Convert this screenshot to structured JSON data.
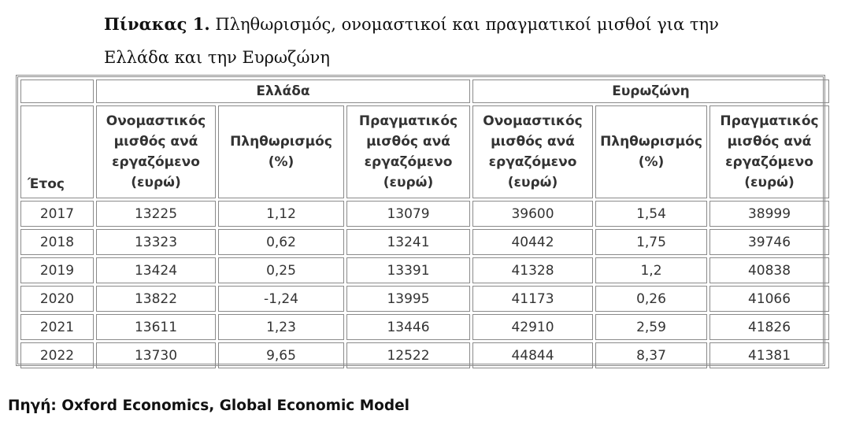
{
  "caption": {
    "label": "Πίνακας 1.",
    "text": "Πληθωρισμός, ονομαστικοί και πραγματικοί μισθοί για την Ελλάδα και την Ευρωζώνη"
  },
  "table": {
    "group_headers": [
      "Ελλάδα",
      "Ευρωζώνη"
    ],
    "columns": [
      [
        "Έτος"
      ],
      [
        "Ονομαστικός",
        "μισθός ανά",
        "εργαζόμενο",
        "(ευρώ)"
      ],
      [
        "Πληθωρισμός",
        "(%)"
      ],
      [
        "Πραγματικός",
        "μισθός ανά",
        "εργαζόμενο",
        "(ευρώ)"
      ],
      [
        "Ονομαστικός",
        "μισθός ανά",
        "εργαζόμενο",
        "(ευρώ)"
      ],
      [
        "Πληθωρισμός",
        "(%)"
      ],
      [
        "Πραγματικός",
        "μισθός ανά",
        "εργαζόμενο",
        "(ευρώ)"
      ]
    ],
    "rows": [
      [
        "2017",
        "13225",
        "1,12",
        "13079",
        "39600",
        "1,54",
        "38999"
      ],
      [
        "2018",
        "13323",
        "0,62",
        "13241",
        "40442",
        "1,75",
        "39746"
      ],
      [
        "2019",
        "13424",
        "0,25",
        "13391",
        "41328",
        "1,2",
        "40838"
      ],
      [
        "2020",
        "13822",
        "-1,24",
        "13995",
        "41173",
        "0,26",
        "41066"
      ],
      [
        "2021",
        "13611",
        "1,23",
        "13446",
        "42910",
        "2,59",
        "41826"
      ],
      [
        "2022",
        "13730",
        "9,65",
        "12522",
        "44844",
        "8,37",
        "41381"
      ]
    ]
  },
  "source": "Πηγή: Oxford Economics, Global Economic Model"
}
